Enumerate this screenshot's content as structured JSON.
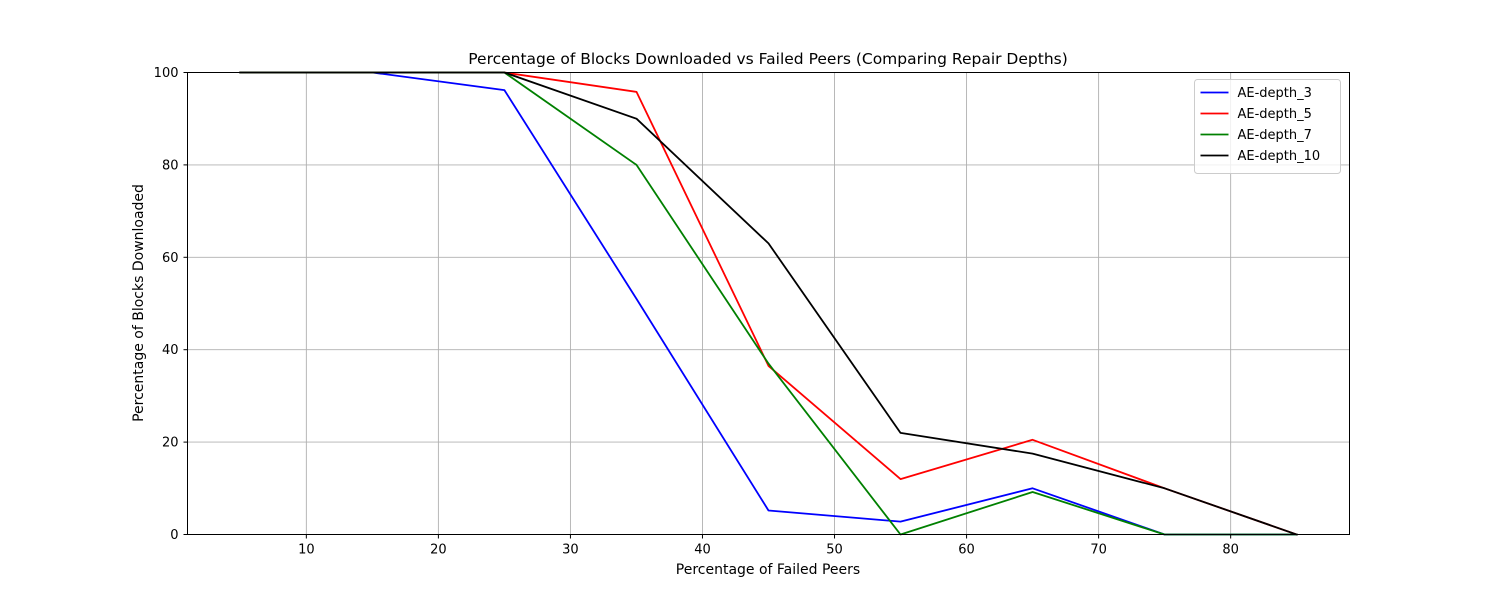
{
  "chart_data": {
    "type": "line",
    "title": "Percentage of Blocks Downloaded vs Failed Peers (Comparing Repair Depths)",
    "xlabel": "Percentage of Failed Peers",
    "ylabel": "Percentage of Blocks Downloaded",
    "x": [
      5,
      15,
      25,
      35,
      45,
      55,
      65,
      75,
      85
    ],
    "xlim": [
      1,
      89
    ],
    "ylim": [
      0,
      100
    ],
    "xticks": [
      10,
      20,
      30,
      40,
      50,
      60,
      70,
      80
    ],
    "yticks": [
      0,
      20,
      40,
      60,
      80,
      100
    ],
    "grid": true,
    "legend_position": "top-right",
    "series": [
      {
        "name": "AE-depth_3",
        "color": "#0000ff",
        "values": [
          100,
          100,
          96.2,
          51,
          5.2,
          2.8,
          10,
          0,
          0
        ]
      },
      {
        "name": "AE-depth_5",
        "color": "#ff0000",
        "values": [
          100,
          100,
          100,
          95.8,
          36.5,
          12,
          20.5,
          10,
          0
        ]
      },
      {
        "name": "AE-depth_7",
        "color": "#008000",
        "values": [
          100,
          100,
          100,
          80,
          37,
          0,
          9.2,
          0,
          0
        ]
      },
      {
        "name": "AE-depth_10",
        "color": "#000000",
        "values": [
          100,
          100,
          100,
          90,
          63,
          22,
          17.5,
          10,
          0
        ]
      }
    ]
  }
}
